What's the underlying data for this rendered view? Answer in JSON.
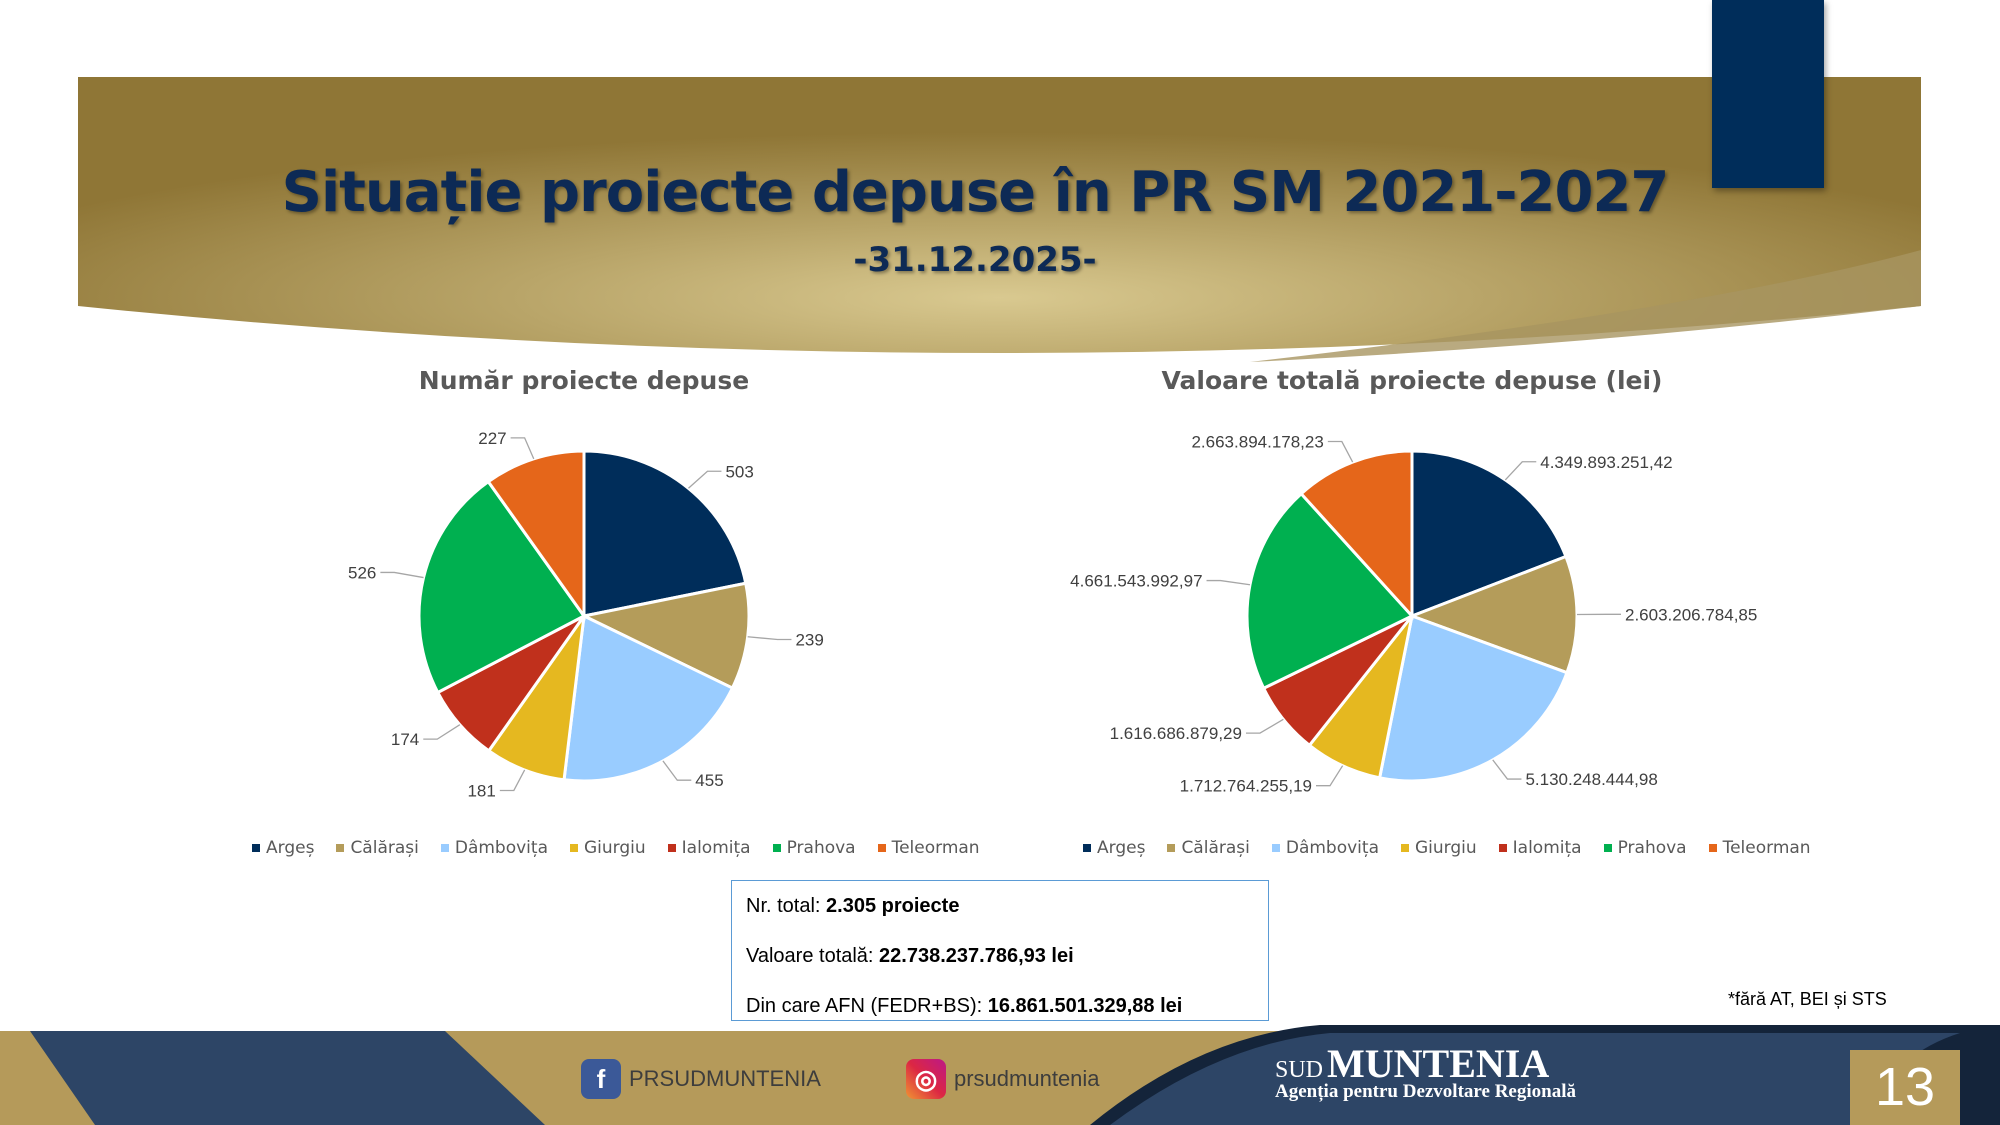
{
  "header": {
    "title": "Situație proiecte depuse în PR SM 2021-2027",
    "subtitle": "-31.12.2025-"
  },
  "chart_data": [
    {
      "type": "pie",
      "title": "Număr proiecte depuse",
      "categories": [
        "Argeș",
        "Călărași",
        "Dâmbovița",
        "Giurgiu",
        "Ialomița",
        "Prahova",
        "Teleorman"
      ],
      "values": [
        503,
        239,
        455,
        181,
        174,
        526,
        227
      ],
      "labels": [
        "503",
        "239",
        "455",
        "181",
        "174",
        "526",
        "227"
      ],
      "legend": "bottom"
    },
    {
      "type": "pie",
      "title": "Valoare totală proiecte depuse (lei)",
      "categories": [
        "Argeș",
        "Călărași",
        "Dâmbovița",
        "Giurgiu",
        "Ialomița",
        "Prahova",
        "Teleorman"
      ],
      "values": [
        4349893251.42,
        2603206784.85,
        5130248444.98,
        1712764255.19,
        1616686879.29,
        4661543992.97,
        2663894178.23
      ],
      "labels": [
        "4.349.893.251,42",
        "2.603.206.784,85",
        "5.130.248.444,98",
        "1.712.764.255,19",
        "1.616.686.879,29",
        "4.661.543.992,97",
        "2.663.894.178,23"
      ],
      "legend": "bottom"
    }
  ],
  "colors": [
    "#002d5a",
    "#b49c5a",
    "#99ccff",
    "#e5b820",
    "#c0301c",
    "#00b050",
    "#e5661a"
  ],
  "summary": {
    "total_label": "Nr. total: ",
    "total_value": "2.305 proiecte",
    "value_label": "Valoare totală: ",
    "value_value": "22.738.237.786,93 lei",
    "afn_label": "Din care AFN (FEDR+BS): ",
    "afn_value": "16.861.501.329,88 lei"
  },
  "footnote": "*fără AT, BEI și STS",
  "footer": {
    "facebook": "PRSUDMUNTENIA",
    "instagram": "prsudmuntenia",
    "logo_small": "SUD",
    "logo_big": "MUNTENIA",
    "logo_sub": "Agenția pentru Dezvoltare Regională",
    "page": "13"
  }
}
